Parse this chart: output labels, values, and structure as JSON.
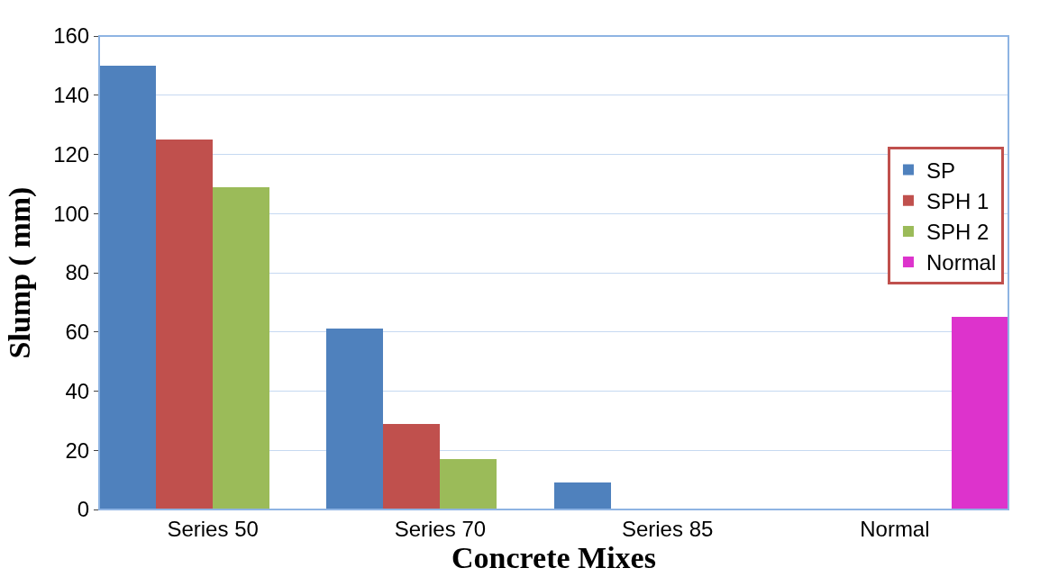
{
  "chart_data": {
    "type": "bar",
    "xlabel": "Concrete Mixes",
    "ylabel": "Slump ( mm)",
    "categories": [
      "Series 50",
      "Series 70",
      "Series 85",
      "Normal"
    ],
    "series": [
      {
        "name": "SP",
        "color": "#4f81bd",
        "values": [
          150,
          61,
          9,
          null
        ]
      },
      {
        "name": "SPH 1",
        "color": "#c0504d",
        "values": [
          125,
          29,
          0,
          null
        ]
      },
      {
        "name": "SPH 2",
        "color": "#9bbb59",
        "values": [
          109,
          17,
          0,
          null
        ]
      },
      {
        "name": "Normal",
        "color": "#dd33cc",
        "values": [
          0,
          null,
          null,
          65
        ]
      }
    ],
    "ylim": [
      0,
      160
    ],
    "yticks": [
      0,
      20,
      40,
      60,
      80,
      100,
      120,
      140,
      160
    ],
    "grid": "y",
    "legend": "right"
  }
}
